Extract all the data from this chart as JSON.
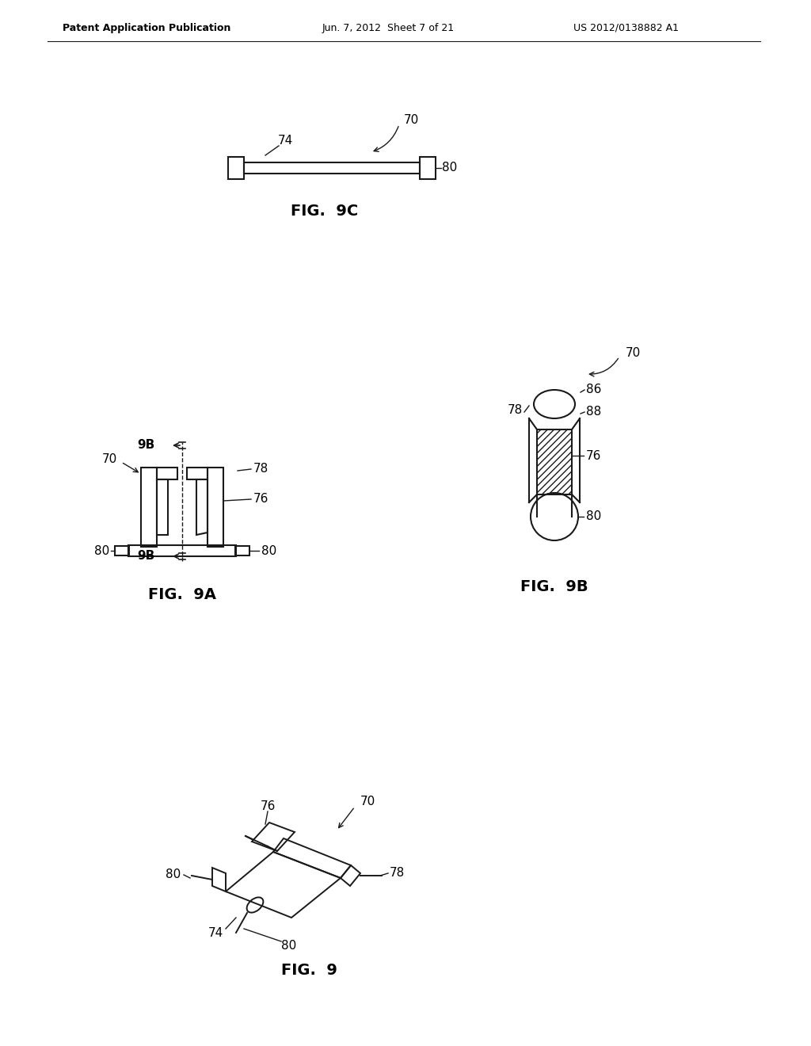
{
  "bg_color": "#ffffff",
  "text_color": "#000000",
  "header_left": "Patent Application Publication",
  "header_mid": "Jun. 7, 2012  Sheet 7 of 21",
  "header_right": "US 2012/0138882 A1",
  "fig9_label": "FIG.  9",
  "fig9a_label": "FIG.  9A",
  "fig9b_label": "FIG.  9B",
  "fig9c_label": "FIG.  9C",
  "line_color": "#1a1a1a"
}
